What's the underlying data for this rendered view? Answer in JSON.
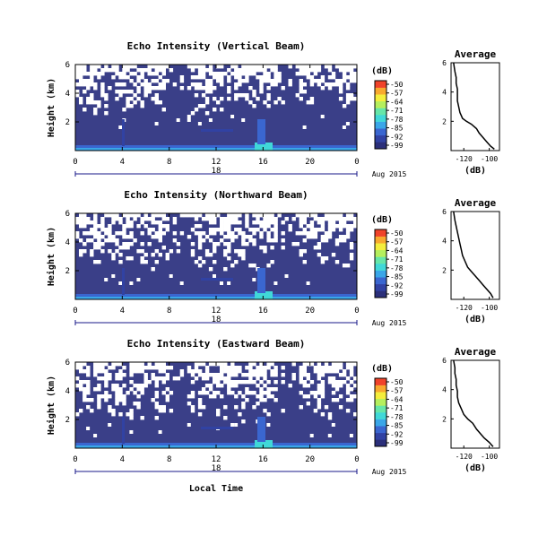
{
  "colorbar": {
    "unit_label": "(dB)",
    "tick_labels": [
      "-50",
      "-57",
      "-64",
      "-71",
      "-78",
      "-85",
      "-92",
      "-99"
    ],
    "colors": [
      "#2b2f7a",
      "#3142a3",
      "#3a66d0",
      "#3aa6e8",
      "#40d8d8",
      "#66e6a8",
      "#b5ef5d",
      "#f4ee3c",
      "#f8a92e",
      "#f0432a"
    ]
  },
  "date_label": "Aug 2015",
  "x_axis_label": "Local Time",
  "panels": [
    {
      "title": "Echo Intensity (Vertical Beam)",
      "avg_title": "Average"
    },
    {
      "title": "Echo Intensity (Northward Beam)",
      "avg_title": "Average"
    },
    {
      "title": "Echo Intensity (Eastward Beam)",
      "avg_title": "Average"
    }
  ],
  "chart_data": [
    {
      "type": "heatmap",
      "title": "Echo Intensity (Vertical Beam)",
      "ylabel": "Height (km)",
      "xlabel": "",
      "x_ticks": [
        "0",
        "4",
        "8",
        "12",
        "16",
        "20",
        "0"
      ],
      "x_range_hours": [
        0,
        24
      ],
      "y_ticks": [
        "6",
        "4",
        "2"
      ],
      "y_range": [
        0,
        6
      ],
      "center_day_label": "18",
      "color_range": [
        -99,
        -50
      ],
      "background_level_db": -95
    },
    {
      "type": "line",
      "title": "Average",
      "xlabel": "(dB)",
      "x_ticks": [
        "-120",
        "-100"
      ],
      "y_ticks": [
        "6",
        "4",
        "2"
      ],
      "xlim": [
        -130,
        -92
      ],
      "ylim": [
        0,
        6
      ],
      "x": [
        -128,
        -127,
        -126,
        -126,
        -125,
        -125,
        -125,
        -124,
        -123,
        -121,
        -118,
        -114,
        -110,
        -108,
        -105,
        -102,
        -99,
        -96
      ],
      "y": [
        6.0,
        5.4,
        5.0,
        4.6,
        4.2,
        3.8,
        3.4,
        3.0,
        2.6,
        2.2,
        2.0,
        1.8,
        1.5,
        1.2,
        0.9,
        0.6,
        0.3,
        0.1
      ]
    },
    {
      "type": "heatmap",
      "title": "Echo Intensity (Northward Beam)",
      "ylabel": "Height (km)",
      "xlabel": "",
      "x_ticks": [
        "0",
        "4",
        "8",
        "12",
        "16",
        "20",
        "0"
      ],
      "x_range_hours": [
        0,
        24
      ],
      "y_ticks": [
        "6",
        "4",
        "2"
      ],
      "y_range": [
        0,
        6
      ],
      "center_day_label": "18",
      "color_range": [
        -99,
        -50
      ],
      "background_level_db": -95
    },
    {
      "type": "line",
      "title": "Average",
      "xlabel": "(dB)",
      "x_ticks": [
        "-120",
        "-100"
      ],
      "y_ticks": [
        "6",
        "4",
        "2"
      ],
      "xlim": [
        -130,
        -92
      ],
      "ylim": [
        0,
        6
      ],
      "x": [
        -128,
        -127,
        -126,
        -125,
        -124,
        -123,
        -122,
        -121,
        -119,
        -117,
        -114,
        -111,
        -108,
        -105,
        -102,
        -99,
        -97
      ],
      "y": [
        6.0,
        5.4,
        5.0,
        4.6,
        4.2,
        3.8,
        3.4,
        3.0,
        2.6,
        2.2,
        1.9,
        1.6,
        1.3,
        1.0,
        0.7,
        0.4,
        0.1
      ]
    },
    {
      "type": "heatmap",
      "title": "Echo Intensity (Eastward Beam)",
      "ylabel": "Height (km)",
      "xlabel": "Local Time",
      "x_ticks": [
        "0",
        "4",
        "8",
        "12",
        "16",
        "20",
        "0"
      ],
      "x_range_hours": [
        0,
        24
      ],
      "y_ticks": [
        "6",
        "4",
        "2"
      ],
      "y_range": [
        0,
        6
      ],
      "center_day_label": "18",
      "color_range": [
        -99,
        -50
      ],
      "background_level_db": -95
    },
    {
      "type": "line",
      "title": "Average",
      "xlabel": "(dB)",
      "x_ticks": [
        "-120",
        "-100"
      ],
      "y_ticks": [
        "6",
        "4",
        "2"
      ],
      "xlim": [
        -130,
        -92
      ],
      "ylim": [
        0,
        6
      ],
      "x": [
        -128,
        -127,
        -127,
        -126,
        -126,
        -125,
        -125,
        -124,
        -122,
        -120,
        -117,
        -113,
        -110,
        -107,
        -104,
        -100,
        -97
      ],
      "y": [
        6.0,
        5.5,
        5.1,
        4.7,
        4.3,
        3.9,
        3.5,
        3.1,
        2.7,
        2.3,
        2.0,
        1.7,
        1.3,
        1.0,
        0.7,
        0.4,
        0.1
      ]
    }
  ]
}
